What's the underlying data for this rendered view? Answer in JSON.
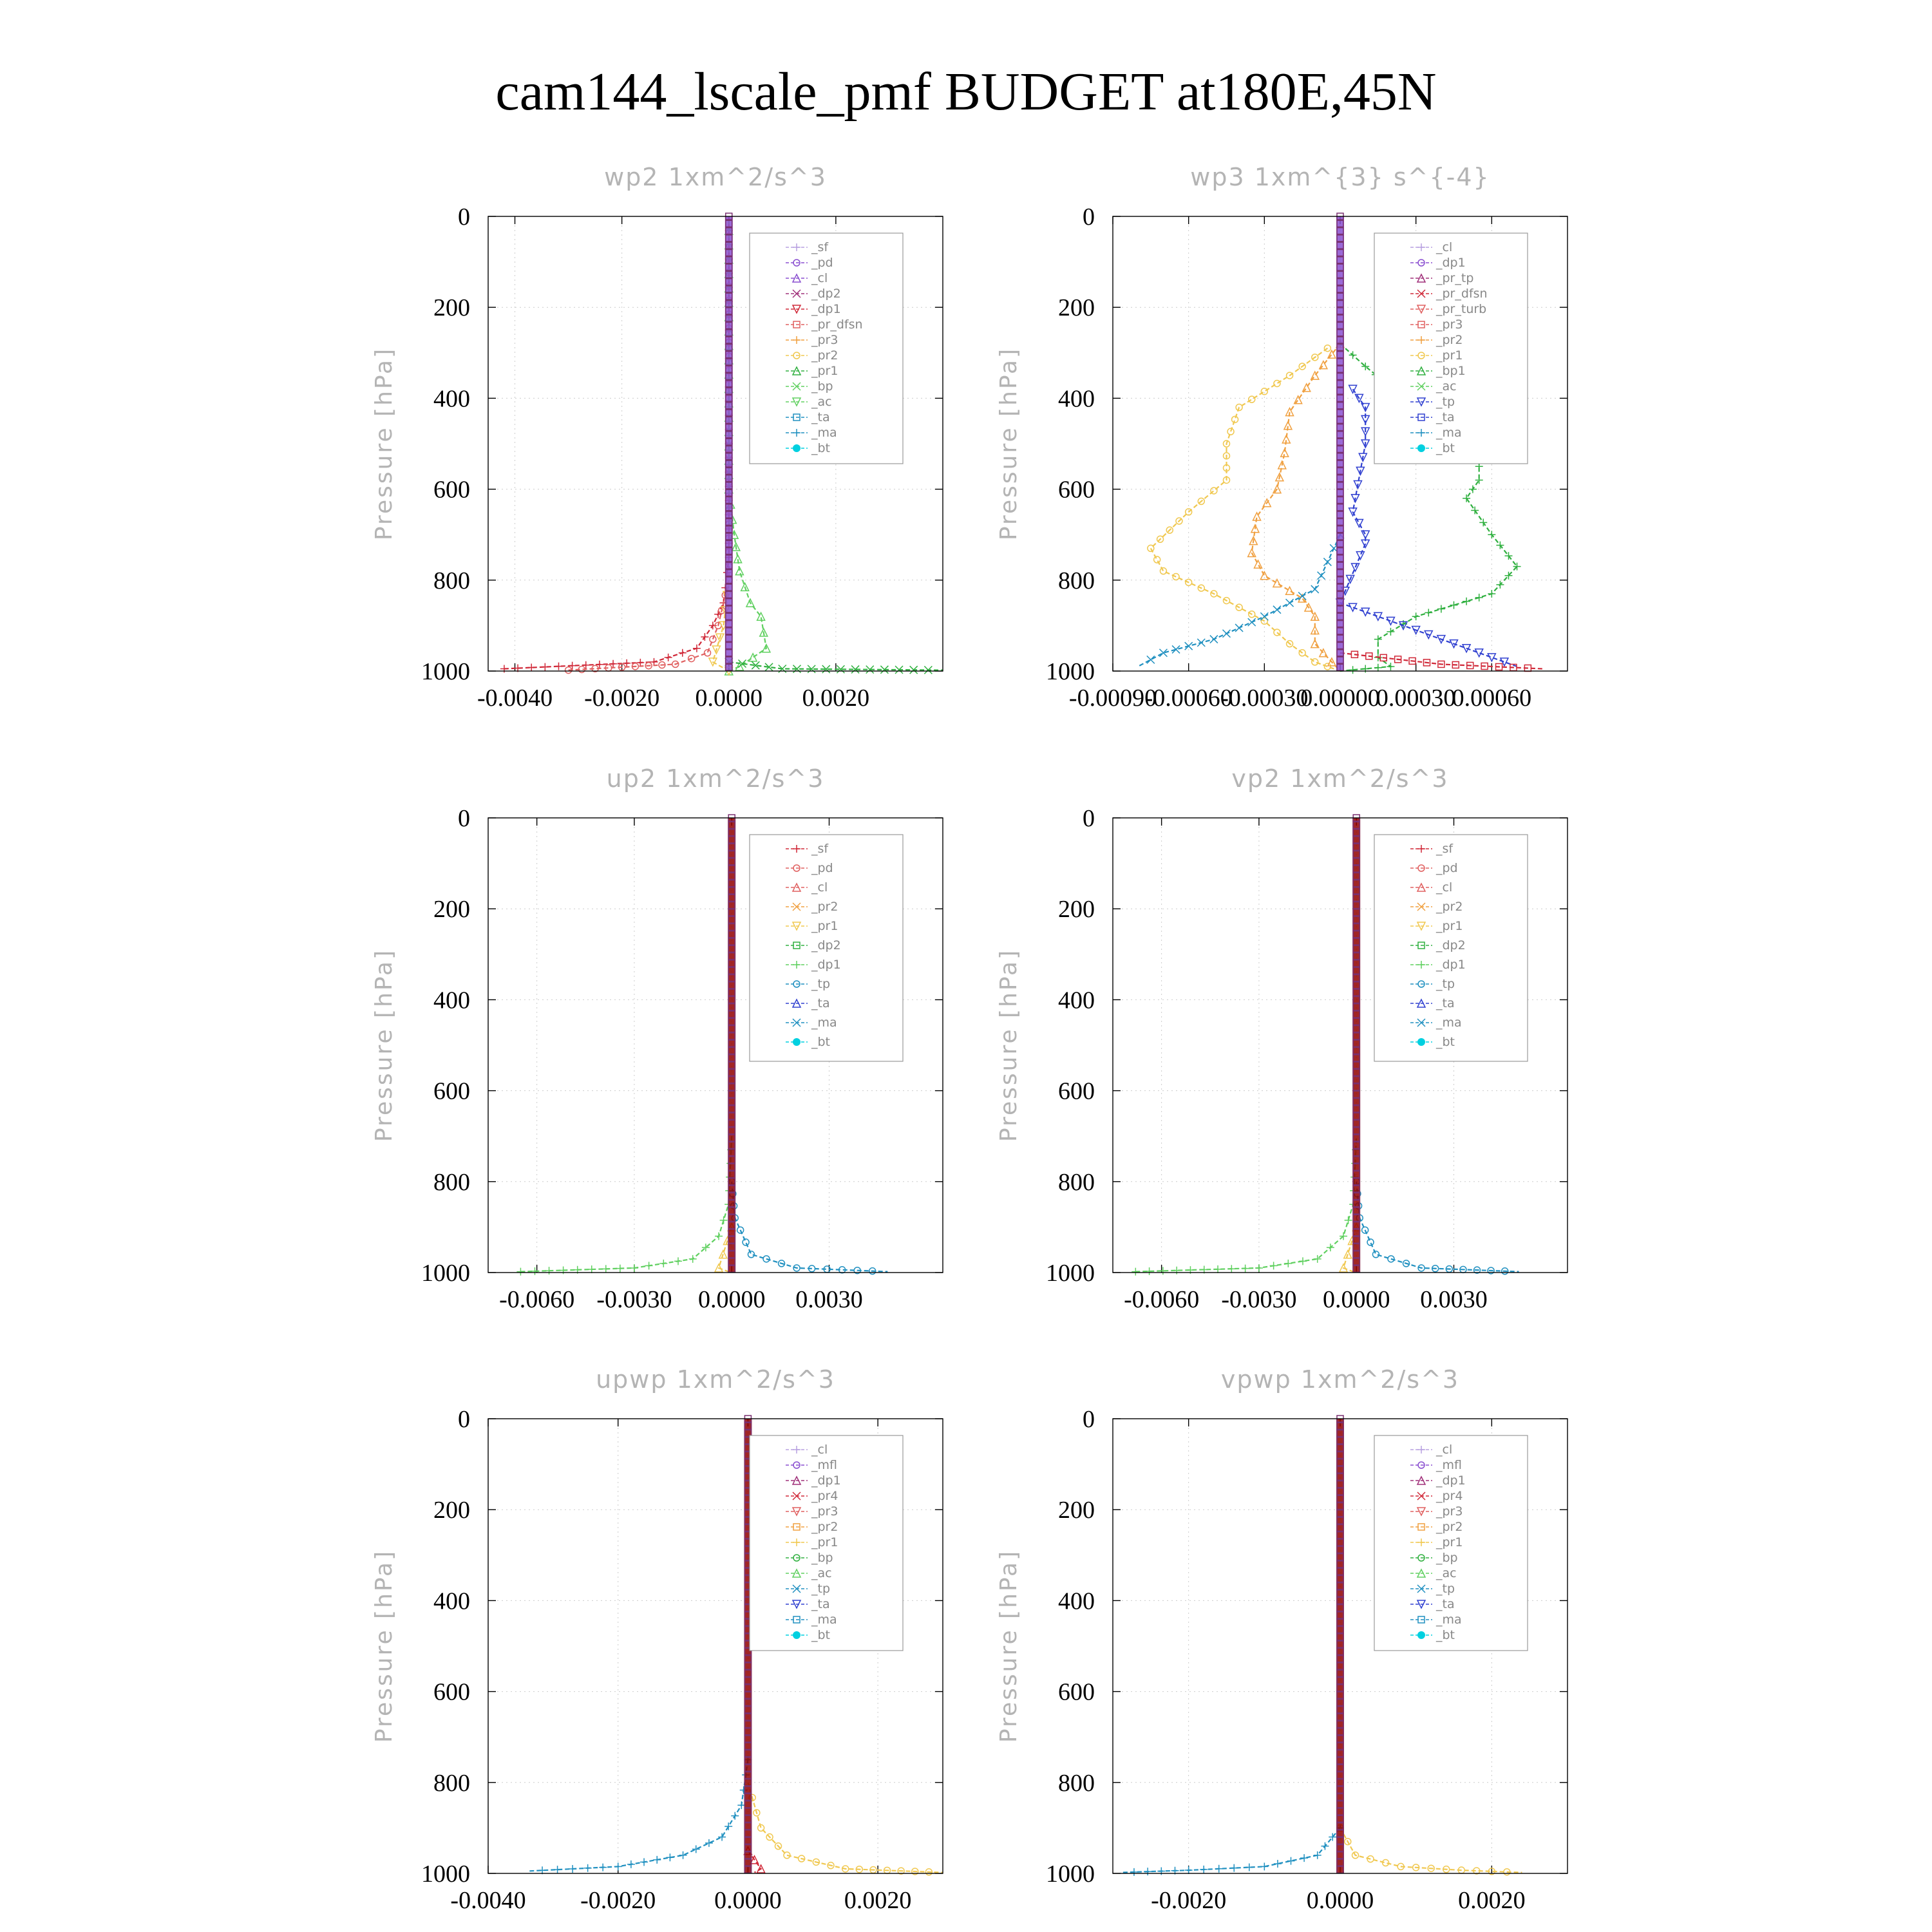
{
  "figure": {
    "title": "cam144_lscale_pmf  BUDGET at180E,45N"
  },
  "colors": {
    "purple_light": "#b8a0e0",
    "purple": "#8a4fd0",
    "magenta": "#a0307a",
    "red": "#d02838",
    "red_light": "#e06060",
    "orange": "#f0a040",
    "yellow": "#f0c850",
    "green": "#30b040",
    "green_light": "#60d060",
    "teal": "#2090c0",
    "blue": "#3040d0",
    "cyan": "#00d0e0",
    "dark_red": "#900000"
  },
  "chart_data": [
    {
      "type": "line",
      "title": "wp2   1xm^2/s^3",
      "ylabel": "Pressure [hPa]",
      "xlim": [
        -0.0045,
        0.004
      ],
      "ylim": [
        1000,
        0
      ],
      "y_inverted": true,
      "xticks": [
        -0.004,
        -0.002,
        0.0,
        0.002
      ],
      "xtick_labels": [
        "-0.0040",
        "-0.0020",
        "0.0000",
        "0.0020"
      ],
      "yticks": [
        0,
        200,
        400,
        600,
        800,
        1000
      ],
      "ytick_labels": [
        "0",
        "200",
        "400",
        "600",
        "800",
        "1000"
      ],
      "grid": true,
      "legend_position": "top-right",
      "legend": [
        "_sf",
        "_pd",
        "_cl",
        "_dp2",
        "_dp1",
        "_pr_dfsn",
        "_pr3",
        "_pr2",
        "_pr1",
        "_bp",
        "_ac",
        "_ta",
        "_ma",
        "_bt"
      ],
      "legend_colors": [
        "purple_light",
        "purple",
        "purple",
        "magenta",
        "red",
        "red_light",
        "orange",
        "yellow",
        "green",
        "green_light",
        "green_light",
        "teal",
        "teal",
        "cyan"
      ],
      "series": [
        {
          "color": "red",
          "x": [
            -0.0042,
            -0.0014,
            -0.0006,
            -0.0003,
            -0.0001,
            0.0,
            0.0
          ],
          "y": [
            995,
            980,
            950,
            900,
            850,
            750,
            0
          ]
        },
        {
          "color": "red_light",
          "x": [
            -0.003,
            -0.001,
            -0.0004,
            -0.0002,
            0.0,
            0.0
          ],
          "y": [
            998,
            985,
            960,
            900,
            800,
            0
          ]
        },
        {
          "color": "green_light",
          "x": [
            0.0,
            0.0002,
            0.0007,
            0.0006,
            0.0004,
            0.0002,
            0.0001,
            0.0,
            0.0
          ],
          "y": [
            1000,
            990,
            950,
            880,
            850,
            780,
            700,
            600,
            0
          ]
        },
        {
          "color": "green",
          "x": [
            0.0,
            0.001,
            0.004
          ],
          "y": [
            980,
            995,
            998
          ]
        },
        {
          "color": "yellow",
          "x": [
            0.0,
            -0.0003,
            -0.0001,
            0.0
          ],
          "y": [
            1000,
            980,
            900,
            800
          ]
        },
        {
          "color": "purple",
          "x": [
            0.0,
            0.0
          ],
          "y": [
            0,
            1000
          ]
        }
      ]
    },
    {
      "type": "line",
      "title": "wp3   1xm^{3} s^{-4}",
      "ylabel": "Pressure [hPa]",
      "xlim": [
        -0.0009,
        0.0009
      ],
      "ylim": [
        1000,
        0
      ],
      "y_inverted": true,
      "xticks": [
        -0.0009,
        -0.0006,
        -0.0003,
        0.0,
        0.0003,
        0.0006
      ],
      "xtick_labels": [
        "-0.00090",
        "-0.00060",
        "-0.00030",
        "0.00000",
        "0.00030",
        "0.00060"
      ],
      "yticks": [
        0,
        200,
        400,
        600,
        800,
        1000
      ],
      "ytick_labels": [
        "0",
        "200",
        "400",
        "600",
        "800",
        "1000"
      ],
      "grid": true,
      "legend_position": "top-right",
      "legend": [
        "_cl",
        "_dp1",
        "_pr_tp",
        "_pr_dfsn",
        "_pr_turb",
        "_pr3",
        "_pr2",
        "_pr1",
        "_bp1",
        "_ac",
        "_tp",
        "_ta",
        "_ma",
        "_bt"
      ],
      "legend_colors": [
        "purple_light",
        "purple",
        "magenta",
        "red",
        "red_light",
        "red_light",
        "orange",
        "yellow",
        "green",
        "green_light",
        "blue",
        "blue",
        "teal",
        "cyan"
      ],
      "series": [
        {
          "color": "green",
          "x": [
            0.0,
            0.0001,
            0.0003,
            0.00055,
            0.00055,
            0.0005,
            0.0006,
            0.0007,
            0.0006,
            0.0003,
            0.00015,
            0.00015,
            0.0002,
            0.0
          ],
          "y": [
            280,
            330,
            420,
            520,
            580,
            620,
            700,
            770,
            830,
            880,
            930,
            970,
            990,
            1000
          ]
        },
        {
          "color": "yellow",
          "x": [
            -5e-05,
            -0.0002,
            -0.0004,
            -0.00045,
            -0.00045,
            -0.0006,
            -0.00075,
            -0.0007,
            -0.0005,
            -0.0003,
            -0.0002,
            -0.0001,
            0.0
          ],
          "y": [
            290,
            350,
            420,
            500,
            580,
            650,
            730,
            780,
            830,
            890,
            940,
            980,
            1000
          ]
        },
        {
          "color": "orange",
          "x": [
            0.0,
            -0.0001,
            -0.0002,
            -0.00022,
            -0.00025,
            -0.00033,
            -0.00035,
            -0.0003,
            -0.00015,
            -0.0001,
            -0.0001,
            0.0
          ],
          "y": [
            280,
            350,
            430,
            520,
            600,
            660,
            740,
            790,
            840,
            880,
            940,
            1000
          ]
        },
        {
          "color": "teal",
          "x": [
            0.0,
            -0.0001,
            -0.0003,
            -0.0005,
            -0.0007,
            -0.0008
          ],
          "y": [
            700,
            820,
            880,
            930,
            960,
            990
          ]
        },
        {
          "color": "blue",
          "x": [
            5e-05,
            0.0001,
            0.0001,
            5e-05,
            0.0001,
            0.0001,
            0.0,
            0.0002,
            0.0004,
            0.0006,
            0.0007
          ],
          "y": [
            380,
            420,
            500,
            650,
            700,
            720,
            850,
            890,
            930,
            970,
            990
          ]
        },
        {
          "color": "red",
          "x": [
            0.0,
            0.0004,
            0.0008
          ],
          "y": [
            960,
            985,
            995
          ]
        },
        {
          "color": "purple",
          "x": [
            0.0,
            0.0
          ],
          "y": [
            0,
            1000
          ]
        }
      ]
    },
    {
      "type": "line",
      "title": "up2   1xm^2/s^3",
      "ylabel": "Pressure [hPa]",
      "xlim": [
        -0.0075,
        0.0065
      ],
      "ylim": [
        1000,
        0
      ],
      "y_inverted": true,
      "xticks": [
        -0.006,
        -0.003,
        0.0,
        0.003
      ],
      "xtick_labels": [
        "-0.0060",
        "-0.0030",
        "0.0000",
        "0.0030"
      ],
      "yticks": [
        0,
        200,
        400,
        600,
        800,
        1000
      ],
      "ytick_labels": [
        "0",
        "200",
        "400",
        "600",
        "800",
        "1000"
      ],
      "grid": true,
      "legend_position": "top-right",
      "legend": [
        "_sf",
        "_pd",
        "_cl",
        "_pr2",
        "_pr1",
        "_dp2",
        "_dp1",
        "_tp",
        "_ta",
        "_ma",
        "_bt"
      ],
      "legend_colors": [
        "red",
        "red_light",
        "red_light",
        "orange",
        "yellow",
        "green",
        "green_light",
        "teal",
        "blue",
        "teal",
        "cyan"
      ],
      "series": [
        {
          "color": "green_light",
          "x": [
            -0.0065,
            -0.003,
            -0.0012,
            -0.0004,
            -0.0001,
            0.0
          ],
          "y": [
            998,
            990,
            970,
            920,
            850,
            700
          ]
        },
        {
          "color": "teal",
          "x": [
            0.0,
            0.0001,
            0.0006,
            0.002,
            0.0048
          ],
          "y": [
            800,
            880,
            960,
            990,
            998
          ]
        },
        {
          "color": "yellow",
          "x": [
            0.0,
            -0.0004,
            -0.0001
          ],
          "y": [
            900,
            990,
            998
          ]
        },
        {
          "color": "dark_red",
          "x": [
            0.0,
            0.0
          ],
          "y": [
            0,
            1000
          ]
        }
      ]
    },
    {
      "type": "line",
      "title": "vp2   1xm^2/s^3",
      "ylabel": "Pressure [hPa]",
      "xlim": [
        -0.0075,
        0.0065
      ],
      "ylim": [
        1000,
        0
      ],
      "y_inverted": true,
      "xticks": [
        -0.006,
        -0.003,
        0.0,
        0.003
      ],
      "xtick_labels": [
        "-0.0060",
        "-0.0030",
        "0.0000",
        "0.0030"
      ],
      "yticks": [
        0,
        200,
        400,
        600,
        800,
        1000
      ],
      "ytick_labels": [
        "0",
        "200",
        "400",
        "600",
        "800",
        "1000"
      ],
      "grid": true,
      "legend_position": "top-right",
      "legend": [
        "_sf",
        "_pd",
        "_cl",
        "_pr2",
        "_pr1",
        "_dp2",
        "_dp1",
        "_tp",
        "_ta",
        "_ma",
        "_bt"
      ],
      "legend_colors": [
        "red",
        "red_light",
        "red_light",
        "orange",
        "yellow",
        "green",
        "green_light",
        "teal",
        "blue",
        "teal",
        "cyan"
      ],
      "series": [
        {
          "color": "green_light",
          "x": [
            -0.0068,
            -0.003,
            -0.0012,
            -0.0004,
            -0.0001,
            0.0
          ],
          "y": [
            998,
            990,
            970,
            920,
            850,
            700
          ]
        },
        {
          "color": "teal",
          "x": [
            0.0,
            0.0001,
            0.0006,
            0.002,
            0.005
          ],
          "y": [
            800,
            880,
            960,
            990,
            998
          ]
        },
        {
          "color": "yellow",
          "x": [
            0.0,
            -0.0004,
            -0.0001
          ],
          "y": [
            900,
            990,
            998
          ]
        },
        {
          "color": "dark_red",
          "x": [
            0.0,
            0.0
          ],
          "y": [
            0,
            1000
          ]
        }
      ]
    },
    {
      "type": "line",
      "title": "upwp   1xm^2/s^3",
      "ylabel": "Pressure [hPa]",
      "xlim": [
        -0.004,
        0.003
      ],
      "ylim": [
        1000,
        0
      ],
      "y_inverted": true,
      "xticks": [
        -0.004,
        -0.002,
        0.0,
        0.002
      ],
      "xtick_labels": [
        "-0.0040",
        "-0.0020",
        "0.0000",
        "0.0020"
      ],
      "yticks": [
        0,
        200,
        400,
        600,
        800,
        1000
      ],
      "ytick_labels": [
        "0",
        "200",
        "400",
        "600",
        "800",
        "1000"
      ],
      "grid": true,
      "legend_position": "top-right",
      "legend": [
        "_cl",
        "_mfl",
        "_dp1",
        "_pr4",
        "_pr3",
        "_pr2",
        "_pr1",
        "_bp",
        "_ac",
        "_tp",
        "_ta",
        "_ma",
        "_bt"
      ],
      "legend_colors": [
        "purple_light",
        "purple",
        "magenta",
        "red",
        "red_light",
        "orange",
        "yellow",
        "green",
        "green_light",
        "teal",
        "blue",
        "teal",
        "cyan"
      ],
      "series": [
        {
          "color": "teal",
          "x": [
            0.0,
            -0.0001,
            -0.0004,
            -0.001,
            -0.002,
            -0.0034
          ],
          "y": [
            750,
            850,
            920,
            960,
            985,
            995
          ]
        },
        {
          "color": "yellow",
          "x": [
            0.0,
            0.0002,
            0.0006,
            0.0015,
            0.003
          ],
          "y": [
            800,
            900,
            960,
            990,
            998
          ]
        },
        {
          "color": "red",
          "x": [
            0.0,
            0.0002,
            0.0001
          ],
          "y": [
            950,
            990,
            998
          ]
        },
        {
          "color": "dark_red",
          "x": [
            0.0,
            0.0
          ],
          "y": [
            0,
            1000
          ]
        }
      ]
    },
    {
      "type": "line",
      "title": "vpwp   1xm^2/s^3",
      "ylabel": "Pressure [hPa]",
      "xlim": [
        -0.003,
        0.003
      ],
      "ylim": [
        1000,
        0
      ],
      "y_inverted": true,
      "xticks": [
        -0.002,
        0.0,
        0.002
      ],
      "xtick_labels": [
        "-0.0020",
        "0.0000",
        "0.0020"
      ],
      "yticks": [
        0,
        200,
        400,
        600,
        800,
        1000
      ],
      "ytick_labels": [
        "0",
        "200",
        "400",
        "600",
        "800",
        "1000"
      ],
      "grid": true,
      "legend_position": "top-right",
      "legend": [
        "_cl",
        "_mfl",
        "_dp1",
        "_pr4",
        "_pr3",
        "_pr2",
        "_pr1",
        "_bp",
        "_ac",
        "_tp",
        "_ta",
        "_ma",
        "_bt"
      ],
      "legend_colors": [
        "purple_light",
        "purple",
        "magenta",
        "red",
        "red_light",
        "orange",
        "yellow",
        "green",
        "green_light",
        "teal",
        "blue",
        "teal",
        "cyan"
      ],
      "series": [
        {
          "color": "teal",
          "x": [
            0.0,
            -0.0003,
            -0.001,
            -0.002,
            -0.0029
          ],
          "y": [
            900,
            960,
            985,
            993,
            998
          ]
        },
        {
          "color": "yellow",
          "x": [
            0.0,
            0.0002,
            0.0008,
            0.0016,
            0.0024
          ],
          "y": [
            900,
            960,
            985,
            993,
            998
          ]
        },
        {
          "color": "dark_red",
          "x": [
            0.0,
            0.0
          ],
          "y": [
            0,
            1000
          ]
        }
      ]
    }
  ]
}
